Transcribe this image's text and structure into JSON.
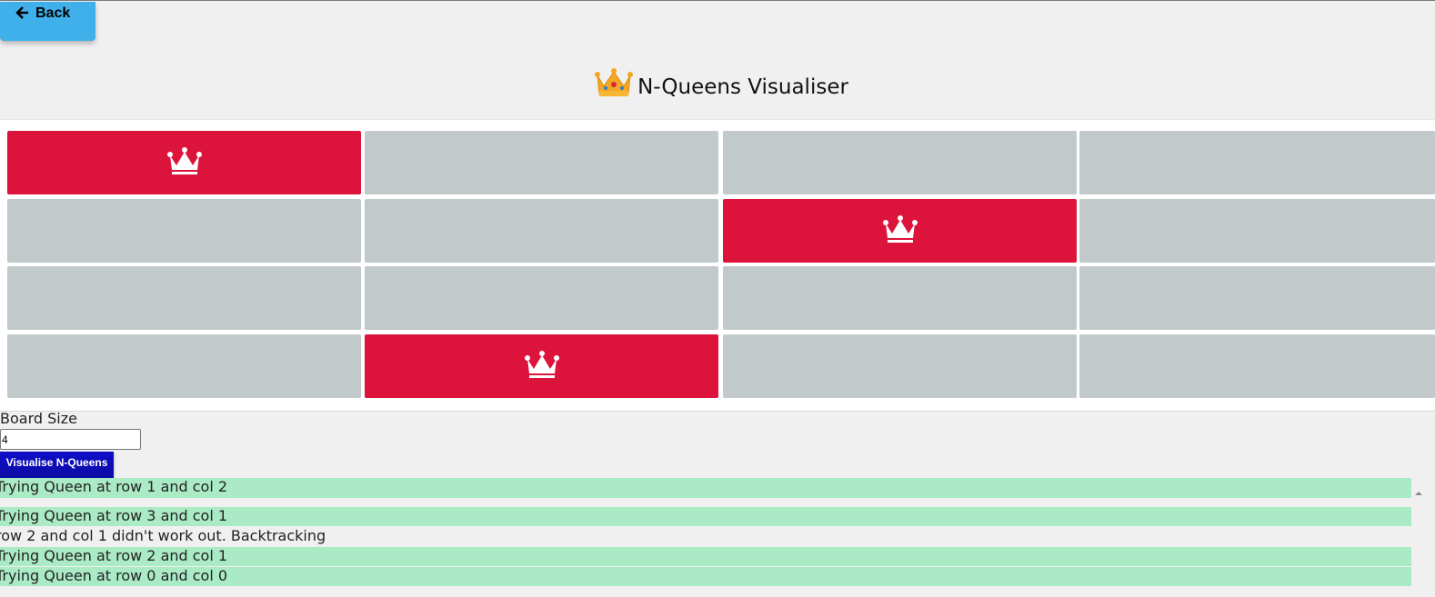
{
  "nav": {
    "back_label": "Back",
    "back_icon": "arrow-left-icon"
  },
  "header": {
    "title": "N-Queens Visualiser",
    "icon": "crown-emoji-icon"
  },
  "colors": {
    "queen_cell": "#dc143c",
    "empty_cell": "#c1c9ca",
    "log_ok": "#aaebc6",
    "back_button": "#3fb0ea",
    "visualise_button": "#0e0ec8"
  },
  "board": {
    "size": 4,
    "queens": [
      {
        "row": 0,
        "col": 0
      },
      {
        "row": 1,
        "col": 2
      },
      {
        "row": 3,
        "col": 1
      }
    ]
  },
  "controls": {
    "size_label": "Board Size",
    "size_value": "4",
    "visualise_label": "Visualise N-Queens"
  },
  "log": [
    {
      "text": "Trying Queen at row 1 and col 2",
      "ok": true
    },
    {
      "text": "Trying Queen at row 3 and col 1",
      "ok": true
    },
    {
      "text": "row 2 and col 1 didn't work out. Backtracking",
      "ok": false
    },
    {
      "text": "Trying Queen at row 2 and col 1",
      "ok": true
    },
    {
      "text": "Trying Queen at row 0 and col 0",
      "ok": true
    }
  ]
}
